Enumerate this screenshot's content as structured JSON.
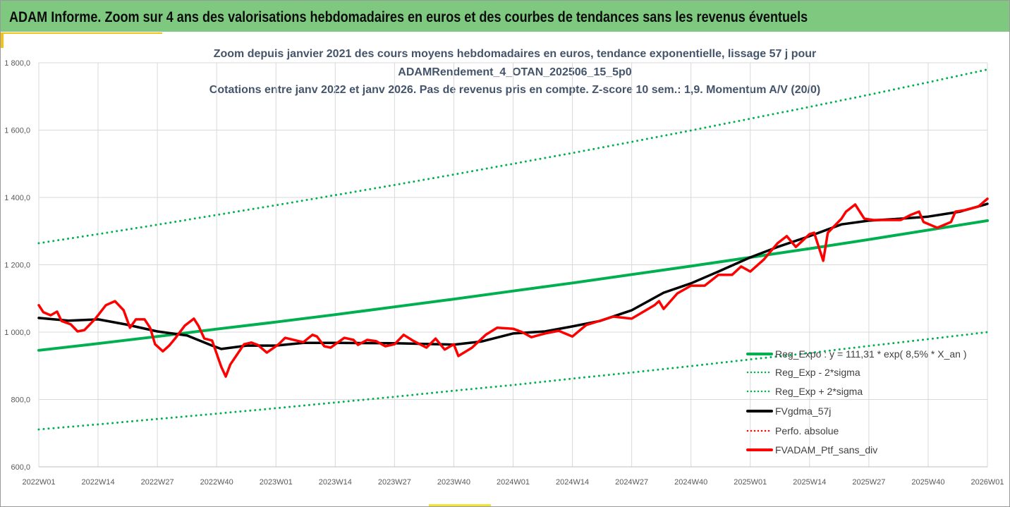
{
  "header": {
    "title": "ADAM Informe. Zoom sur 4 ans des valorisations hebdomadaires en euros et des courbes de tendances sans les revenus éventuels"
  },
  "chart_data": {
    "type": "line",
    "title": [
      "Zoom depuis janvier 2021 des cours moyens hebdomadaires  en euros, tendance exponentielle, lissage 57 j pour",
      "ADAMRendement_4_OTAN_202506_15_5p0",
      "Cotations entre janv 2022 et janv 2026. Pas de revenus pris en compte. Z-score 10 sem.: 1,9. Momentum A/V (20/0)"
    ],
    "xlabel": "",
    "ylabel": "",
    "ylim": [
      600,
      1800
    ],
    "yticks": [
      600,
      800,
      1000,
      1200,
      1400,
      1600,
      1800
    ],
    "ytick_labels": [
      "600,0",
      "800,0",
      "1 000,0",
      "1 200,0",
      "1 400,0",
      "1 600,0",
      "1 800,0"
    ],
    "x_weeks_range": [
      0,
      208
    ],
    "xtick_labels": [
      "2022W01",
      "2022W14",
      "2022W27",
      "2022W40",
      "2023W01",
      "2023W14",
      "2023W27",
      "2023W40",
      "2024W01",
      "2024W14",
      "2024W27",
      "2024W40",
      "2025W01",
      "2025W14",
      "2025W27",
      "2025W40",
      "2026W01"
    ],
    "grid": true,
    "legend_position": "bottom-right",
    "series": [
      {
        "name": "Reg_Expo : y = 111,31 * exp( 8,5% *  X_an )",
        "color": "#00b050",
        "style": "solid",
        "points": [
          [
            0,
            946
          ],
          [
            13,
            966
          ],
          [
            26,
            987
          ],
          [
            39,
            1009
          ],
          [
            52,
            1030
          ],
          [
            65,
            1052
          ],
          [
            78,
            1075
          ],
          [
            91,
            1098
          ],
          [
            104,
            1122
          ],
          [
            117,
            1146
          ],
          [
            130,
            1171
          ],
          [
            143,
            1196
          ],
          [
            156,
            1222
          ],
          [
            169,
            1248
          ],
          [
            182,
            1275
          ],
          [
            195,
            1303
          ],
          [
            208,
            1331
          ]
        ]
      },
      {
        "name": "Reg_Exp - 2*sigma",
        "color": "#00b050",
        "style": "dotted",
        "points": [
          [
            0,
            711
          ],
          [
            13,
            726
          ],
          [
            26,
            742
          ],
          [
            39,
            758
          ],
          [
            52,
            774
          ],
          [
            65,
            791
          ],
          [
            78,
            808
          ],
          [
            91,
            826
          ],
          [
            104,
            843
          ],
          [
            117,
            862
          ],
          [
            130,
            880
          ],
          [
            143,
            899
          ],
          [
            156,
            919
          ],
          [
            169,
            938
          ],
          [
            182,
            959
          ],
          [
            195,
            979
          ],
          [
            208,
            1000
          ]
        ]
      },
      {
        "name": "Reg_Exp + 2*sigma",
        "color": "#00b050",
        "style": "dotted",
        "points": [
          [
            0,
            1264
          ],
          [
            13,
            1291
          ],
          [
            26,
            1319
          ],
          [
            39,
            1348
          ],
          [
            52,
            1377
          ],
          [
            65,
            1407
          ],
          [
            78,
            1437
          ],
          [
            91,
            1468
          ],
          [
            104,
            1500
          ],
          [
            117,
            1532
          ],
          [
            130,
            1565
          ],
          [
            143,
            1599
          ],
          [
            156,
            1634
          ],
          [
            169,
            1669
          ],
          [
            182,
            1705
          ],
          [
            195,
            1742
          ],
          [
            208,
            1780
          ]
        ]
      },
      {
        "name": "FVgdma_57j",
        "color": "#000000",
        "style": "solid",
        "points": [
          [
            0,
            1042
          ],
          [
            6.5,
            1034
          ],
          [
            13,
            1038
          ],
          [
            19,
            1023
          ],
          [
            26,
            1002
          ],
          [
            32.5,
            990
          ],
          [
            38,
            960
          ],
          [
            40,
            950
          ],
          [
            45.6,
            960
          ],
          [
            52,
            960
          ],
          [
            58,
            968
          ],
          [
            65,
            968
          ],
          [
            78,
            967
          ],
          [
            91,
            963
          ],
          [
            97,
            972
          ],
          [
            104,
            996
          ],
          [
            111,
            1002
          ],
          [
            117,
            1017
          ],
          [
            123,
            1033
          ],
          [
            130,
            1065
          ],
          [
            137,
            1117
          ],
          [
            143,
            1145
          ],
          [
            149,
            1180
          ],
          [
            156,
            1222
          ],
          [
            162,
            1253
          ],
          [
            169,
            1285
          ],
          [
            176,
            1320
          ],
          [
            182,
            1331
          ],
          [
            189,
            1337
          ],
          [
            195,
            1343
          ],
          [
            202,
            1358
          ],
          [
            208,
            1381
          ]
        ]
      },
      {
        "name": "Perfo. absolue",
        "color": "#ff0000",
        "style": "dotted",
        "points": []
      },
      {
        "name": "FVADAM_Ptf_sans_div",
        "color": "#ff0000",
        "style": "solid",
        "points": [
          [
            0,
            1080
          ],
          [
            1,
            1059
          ],
          [
            2.6,
            1050
          ],
          [
            4,
            1061
          ],
          [
            5,
            1033
          ],
          [
            7,
            1023
          ],
          [
            8.5,
            1002
          ],
          [
            10,
            1006
          ],
          [
            12.4,
            1040
          ],
          [
            14.7,
            1080
          ],
          [
            16.7,
            1092
          ],
          [
            18.6,
            1065
          ],
          [
            20,
            1013
          ],
          [
            21.3,
            1038
          ],
          [
            23.2,
            1038
          ],
          [
            24.4,
            1013
          ],
          [
            25.5,
            964
          ],
          [
            27.2,
            943
          ],
          [
            28.6,
            960
          ],
          [
            30,
            983
          ],
          [
            32,
            1019
          ],
          [
            34,
            1040
          ],
          [
            35,
            1019
          ],
          [
            36.3,
            981
          ],
          [
            38,
            975
          ],
          [
            40,
            897
          ],
          [
            41,
            868
          ],
          [
            42,
            904
          ],
          [
            45,
            964
          ],
          [
            46.6,
            969
          ],
          [
            48,
            962
          ],
          [
            50,
            939
          ],
          [
            52.6,
            964
          ],
          [
            54,
            983
          ],
          [
            58,
            970
          ],
          [
            60,
            992
          ],
          [
            61,
            987
          ],
          [
            62.6,
            958
          ],
          [
            64,
            954
          ],
          [
            67,
            983
          ],
          [
            69,
            977
          ],
          [
            70,
            962
          ],
          [
            72,
            977
          ],
          [
            74,
            973
          ],
          [
            76,
            958
          ],
          [
            78,
            964
          ],
          [
            80,
            992
          ],
          [
            82,
            975
          ],
          [
            85,
            954
          ],
          [
            87,
            981
          ],
          [
            89,
            948
          ],
          [
            91,
            964
          ],
          [
            92,
            929
          ],
          [
            95,
            954
          ],
          [
            98,
            992
          ],
          [
            100.5,
            1013
          ],
          [
            104,
            1010
          ],
          [
            106,
            1000
          ],
          [
            108,
            985
          ],
          [
            111,
            996
          ],
          [
            114,
            1004
          ],
          [
            117,
            987
          ],
          [
            120,
            1021
          ],
          [
            126,
            1046
          ],
          [
            130,
            1040
          ],
          [
            135,
            1080
          ],
          [
            136,
            1092
          ],
          [
            137,
            1069
          ],
          [
            140,
            1115
          ],
          [
            143,
            1138
          ],
          [
            146,
            1138
          ],
          [
            149,
            1170
          ],
          [
            152,
            1170
          ],
          [
            154,
            1195
          ],
          [
            156,
            1180
          ],
          [
            159,
            1216
          ],
          [
            162,
            1264
          ],
          [
            164,
            1285
          ],
          [
            166,
            1253
          ],
          [
            169,
            1291
          ],
          [
            170,
            1295
          ],
          [
            172,
            1212
          ],
          [
            173,
            1295
          ],
          [
            176,
            1337
          ],
          [
            177,
            1358
          ],
          [
            179,
            1379
          ],
          [
            181,
            1337
          ],
          [
            183,
            1333
          ],
          [
            187,
            1333
          ],
          [
            189,
            1333
          ],
          [
            191,
            1347
          ],
          [
            193,
            1358
          ],
          [
            194,
            1327
          ],
          [
            197,
            1310
          ],
          [
            200,
            1327
          ],
          [
            201,
            1358
          ],
          [
            203,
            1362
          ],
          [
            206,
            1373
          ],
          [
            208,
            1396
          ]
        ]
      }
    ]
  }
}
